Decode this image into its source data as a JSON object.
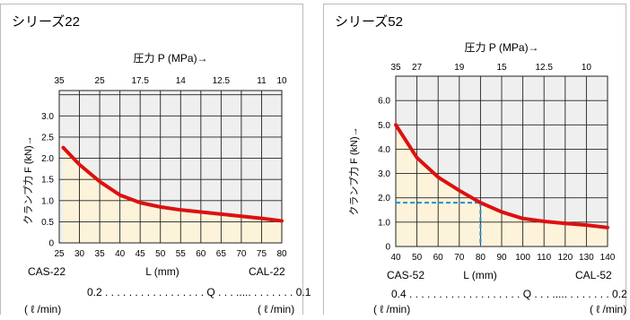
{
  "chart_data": [
    {
      "type": "line",
      "title": "シリーズ22",
      "top_axis_label": "圧力 P (MPa)→",
      "ylabel": "クランプ力 F (kN)→",
      "xlabel": "L (mm)",
      "x_range": [
        25,
        80
      ],
      "ylim": [
        0,
        3.6
      ],
      "x_ticks": [
        25,
        30,
        35,
        40,
        45,
        50,
        55,
        60,
        65,
        70,
        75,
        80
      ],
      "y_ticks": [
        0,
        0.5,
        1.0,
        1.5,
        2.0,
        2.5,
        3.0
      ],
      "y_tick_labels": [
        "0",
        "0.5",
        "1.0",
        "1.5",
        "2.0",
        "2.5",
        "3.0"
      ],
      "top_ticks": [
        {
          "x": 25,
          "label": "35"
        },
        {
          "x": 35,
          "label": "25"
        },
        {
          "x": 45,
          "label": "17.5"
        },
        {
          "x": 55,
          "label": "14"
        },
        {
          "x": 65,
          "label": "12.5"
        },
        {
          "x": 75,
          "label": "11"
        },
        {
          "x": 80,
          "label": "10"
        }
      ],
      "grid": true,
      "series": [
        {
          "x": [
            26,
            30,
            35,
            40,
            45,
            50,
            55,
            60,
            65,
            70,
            75,
            80
          ],
          "values": [
            2.25,
            1.85,
            1.45,
            1.13,
            0.95,
            0.85,
            0.78,
            0.73,
            0.68,
            0.63,
            0.58,
            0.52
          ]
        }
      ],
      "label_left": "CAS-22",
      "label_right": "CAL-22",
      "flow_text": "0.2 . . . . . . . . . . . . . . . . . Q . . . ..... . . . . . . . 0.1",
      "flow_unit_left": "( ℓ /min)",
      "flow_unit_right": "( ℓ /min)"
    },
    {
      "type": "line",
      "title": "シリーズ52",
      "top_axis_label": "圧力 P (MPa)→",
      "ylabel": "クランプ力 F (kN)→",
      "xlabel": "L (mm)",
      "x_range": [
        40,
        140
      ],
      "ylim": [
        0,
        7.0
      ],
      "x_ticks": [
        40,
        50,
        60,
        70,
        80,
        90,
        100,
        110,
        120,
        130,
        140
      ],
      "y_ticks": [
        0,
        1.0,
        2.0,
        3.0,
        4.0,
        5.0,
        6.0
      ],
      "y_tick_labels": [
        "0",
        "1.0",
        "2.0",
        "3.0",
        "4.0",
        "5.0",
        "6.0"
      ],
      "top_ticks": [
        {
          "x": 40,
          "label": "35"
        },
        {
          "x": 50,
          "label": "27"
        },
        {
          "x": 70,
          "label": "19"
        },
        {
          "x": 90,
          "label": "15"
        },
        {
          "x": 110,
          "label": "12.5"
        },
        {
          "x": 130,
          "label": "10"
        }
      ],
      "grid": true,
      "series": [
        {
          "x": [
            40,
            50,
            60,
            70,
            80,
            90,
            100,
            110,
            120,
            130,
            140
          ],
          "values": [
            5.0,
            3.65,
            2.85,
            2.3,
            1.8,
            1.42,
            1.15,
            1.03,
            0.95,
            0.88,
            0.78
          ]
        }
      ],
      "highlight": {
        "x": 80,
        "y": 1.8
      },
      "label_left": "CAS-52",
      "label_right": "CAL-52",
      "flow_text": "0.4 . . . . . . . . . . . . . . . . . . . Q . . . ..... . . . . . . . 0.2",
      "flow_unit_left": "( ℓ /min)",
      "flow_unit_right": "( ℓ /min)"
    }
  ],
  "colors": {
    "curve": "#dd1010",
    "fill": "#fdf3da",
    "upper_bg": "#efefef",
    "grid": "#222222",
    "highlight": "#1e90d8"
  }
}
